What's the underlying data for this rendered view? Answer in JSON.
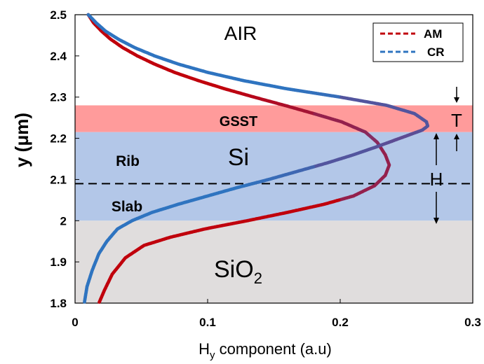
{
  "chart_data": {
    "type": "scatter",
    "xlabel_main": "H",
    "xlabel_sub": "y",
    "xlabel_rest": " component (a.u)",
    "ylabel": "y (μm)",
    "xlim": [
      0,
      0.3
    ],
    "ylim": [
      1.8,
      2.5
    ],
    "x_ticks": [
      "0",
      "0.1",
      "0.2",
      "0.3"
    ],
    "y_ticks": [
      "1.8",
      "1.9",
      "2",
      "2.1",
      "2.2",
      "2.3",
      "2.4",
      "2.5"
    ],
    "legend_position": "top-right",
    "series": [
      {
        "name": "AM",
        "color": "#c0000c",
        "points": [
          [
            0.01,
            2.5
          ],
          [
            0.014,
            2.48
          ],
          [
            0.02,
            2.46
          ],
          [
            0.027,
            2.44
          ],
          [
            0.036,
            2.42
          ],
          [
            0.047,
            2.4
          ],
          [
            0.06,
            2.38
          ],
          [
            0.075,
            2.36
          ],
          [
            0.093,
            2.34
          ],
          [
            0.113,
            2.32
          ],
          [
            0.135,
            2.3
          ],
          [
            0.158,
            2.28
          ],
          [
            0.18,
            2.26
          ],
          [
            0.201,
            2.24
          ],
          [
            0.219,
            2.215
          ],
          [
            0.228,
            2.19
          ],
          [
            0.234,
            2.16
          ],
          [
            0.237,
            2.135
          ],
          [
            0.234,
            2.11
          ],
          [
            0.226,
            2.085
          ],
          [
            0.21,
            2.06
          ],
          [
            0.188,
            2.04
          ],
          [
            0.16,
            2.02
          ],
          [
            0.13,
            2.0
          ],
          [
            0.098,
            1.98
          ],
          [
            0.072,
            1.96
          ],
          [
            0.052,
            1.94
          ],
          [
            0.038,
            1.91
          ],
          [
            0.028,
            1.87
          ],
          [
            0.022,
            1.83
          ],
          [
            0.018,
            1.8
          ]
        ]
      },
      {
        "name": "CR",
        "color": "#2f74c0",
        "points": [
          [
            0.01,
            2.5
          ],
          [
            0.016,
            2.48
          ],
          [
            0.023,
            2.46
          ],
          [
            0.033,
            2.44
          ],
          [
            0.045,
            2.42
          ],
          [
            0.06,
            2.4
          ],
          [
            0.078,
            2.38
          ],
          [
            0.1,
            2.36
          ],
          [
            0.127,
            2.34
          ],
          [
            0.16,
            2.32
          ],
          [
            0.2,
            2.3
          ],
          [
            0.235,
            2.28
          ],
          [
            0.256,
            2.26
          ],
          [
            0.265,
            2.24
          ],
          [
            0.266,
            2.23
          ],
          [
            0.262,
            2.22
          ],
          [
            0.245,
            2.2
          ],
          [
            0.228,
            2.18
          ],
          [
            0.21,
            2.16
          ],
          [
            0.19,
            2.14
          ],
          [
            0.168,
            2.12
          ],
          [
            0.146,
            2.1
          ],
          [
            0.122,
            2.08
          ],
          [
            0.1,
            2.06
          ],
          [
            0.078,
            2.04
          ],
          [
            0.058,
            2.02
          ],
          [
            0.043,
            2.0
          ],
          [
            0.032,
            1.98
          ],
          [
            0.024,
            1.95
          ],
          [
            0.018,
            1.92
          ],
          [
            0.013,
            1.88
          ],
          [
            0.009,
            1.84
          ],
          [
            0.007,
            1.8
          ]
        ]
      }
    ],
    "regions": [
      {
        "name": "GSST",
        "label": "GSST",
        "y_from": 2.215,
        "y_to": 2.28,
        "color": "#ff9b9b"
      },
      {
        "name": "Si",
        "label": "Si",
        "y_from": 2.0,
        "y_to": 2.215,
        "color": "#b3c7e8"
      },
      {
        "name": "SiO2",
        "label": "SiO",
        "sub": "2",
        "y_from": 1.8,
        "y_to": 2.0,
        "color": "#e0dddd"
      }
    ],
    "annotations": {
      "air": "AIR",
      "rib": "Rib",
      "slab": "Slab",
      "T": "T",
      "H": "H",
      "slab_line_y": 2.09
    }
  }
}
